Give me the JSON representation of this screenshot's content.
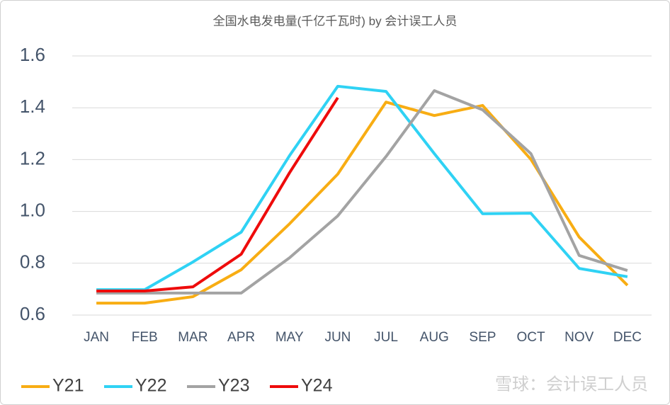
{
  "chart_data": {
    "type": "line",
    "title": "全国水电发电量(千亿千瓦时) by 会计误工人员",
    "categories": [
      "JAN",
      "FEB",
      "MAR",
      "APR",
      "MAY",
      "JUN",
      "JUL",
      "AUG",
      "SEP",
      "OCT",
      "NOV",
      "DEC"
    ],
    "series": [
      {
        "name": "Y21",
        "color": "#f8ad13",
        "values": [
          0.646,
          0.646,
          0.671,
          0.775,
          0.952,
          1.144,
          1.422,
          1.37,
          1.409,
          1.201,
          0.901,
          0.715
        ]
      },
      {
        "name": "Y22",
        "color": "#2fd2f4",
        "values": [
          0.698,
          0.698,
          0.805,
          0.92,
          1.215,
          1.483,
          1.463,
          1.223,
          0.991,
          0.993,
          0.78,
          0.748
        ]
      },
      {
        "name": "Y23",
        "color": "#a3a3a3",
        "values": [
          0.685,
          0.685,
          0.685,
          0.685,
          0.821,
          0.983,
          1.212,
          1.466,
          1.392,
          1.223,
          0.83,
          0.772
        ]
      },
      {
        "name": "Y24",
        "color": "#ee0b0b",
        "values": [
          0.693,
          0.693,
          0.709,
          0.835,
          1.149,
          1.439,
          null,
          null,
          null,
          null,
          null,
          null
        ]
      }
    ],
    "ylim": [
      0.6,
      1.6
    ],
    "yticks": [
      0.6,
      0.8,
      {
        "value": 1.0,
        "label": "1.0"
      },
      1.2,
      1.4,
      1.6
    ],
    "grid": true,
    "legend": "bottom-left",
    "watermark": "雪球：会计误工人员"
  }
}
